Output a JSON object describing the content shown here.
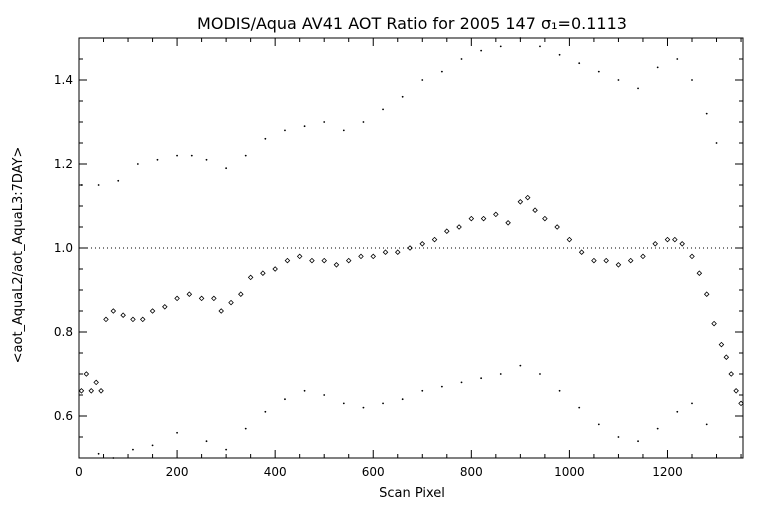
{
  "chart_data": {
    "type": "scatter",
    "title": "MODIS/Aqua AV41 AOT Ratio for 2005 147 σ₁=0.1113",
    "xlabel": "Scan Pixel",
    "ylabel": "<aot_AquaL2/aot_AquaL3:7DAY>",
    "xlim": [
      0,
      1354
    ],
    "ylim": [
      0.5,
      1.5
    ],
    "x_ticks": [
      0,
      200,
      400,
      600,
      800,
      1000,
      1200
    ],
    "y_ticks": [
      0.6,
      0.8,
      1.0,
      1.2,
      1.4
    ],
    "x_tick_labels": [
      "0",
      "200",
      "400",
      "600",
      "800",
      "1000",
      "1200"
    ],
    "y_tick_labels": [
      "0.6",
      "0.8",
      "1.0",
      "1.2",
      "1.4"
    ],
    "reference_line": 1.0,
    "grid": false,
    "series": [
      {
        "marker": "diamond",
        "x": [
          5,
          15,
          25,
          35,
          45,
          55,
          70,
          90,
          110,
          130,
          150,
          175,
          200,
          225,
          250,
          275,
          290,
          310,
          330,
          350,
          375,
          400,
          425,
          450,
          475,
          500,
          525,
          550,
          575,
          600,
          625,
          650,
          675,
          700,
          725,
          750,
          775,
          800,
          825,
          850,
          875,
          900,
          915,
          930,
          950,
          975,
          1000,
          1025,
          1050,
          1075,
          1100,
          1125,
          1150,
          1175,
          1200,
          1215,
          1230,
          1250,
          1265,
          1280,
          1295,
          1310,
          1320,
          1330,
          1340,
          1350
        ],
        "y": [
          0.66,
          0.7,
          0.66,
          0.68,
          0.66,
          0.83,
          0.85,
          0.84,
          0.83,
          0.83,
          0.85,
          0.86,
          0.88,
          0.89,
          0.88,
          0.88,
          0.85,
          0.87,
          0.89,
          0.93,
          0.94,
          0.95,
          0.97,
          0.98,
          0.97,
          0.97,
          0.96,
          0.97,
          0.98,
          0.98,
          0.99,
          0.99,
          1.0,
          1.01,
          1.02,
          1.04,
          1.05,
          1.07,
          1.07,
          1.08,
          1.06,
          1.11,
          1.12,
          1.09,
          1.07,
          1.05,
          1.02,
          0.99,
          0.97,
          0.97,
          0.96,
          0.97,
          0.98,
          1.01,
          1.02,
          1.02,
          1.01,
          0.98,
          0.94,
          0.89,
          0.82,
          0.77,
          0.74,
          0.7,
          0.66,
          0.63
        ]
      },
      {
        "marker": "dot",
        "x": [
          5,
          40,
          80,
          120,
          160,
          200,
          230,
          260,
          300,
          340,
          380,
          420,
          460,
          500,
          540,
          580,
          620,
          660,
          700,
          740,
          780,
          820,
          860,
          900,
          940,
          980,
          1020,
          1060,
          1100,
          1140,
          1180,
          1220,
          1250,
          1280,
          1300
        ],
        "y": [
          1.15,
          1.15,
          1.16,
          1.2,
          1.21,
          1.22,
          1.22,
          1.21,
          1.19,
          1.22,
          1.26,
          1.28,
          1.29,
          1.3,
          1.28,
          1.3,
          1.33,
          1.36,
          1.4,
          1.42,
          1.45,
          1.47,
          1.48,
          1.5,
          1.48,
          1.46,
          1.44,
          1.42,
          1.4,
          1.38,
          1.43,
          1.45,
          1.4,
          1.32,
          1.25
        ]
      },
      {
        "marker": "dot",
        "x": [
          40,
          70,
          110,
          150,
          200,
          260,
          300,
          340,
          380,
          420,
          460,
          500,
          540,
          580,
          620,
          660,
          700,
          740,
          780,
          820,
          860,
          900,
          940,
          980,
          1020,
          1060,
          1100,
          1140,
          1180,
          1220,
          1250,
          1280
        ],
        "y": [
          0.51,
          0.5,
          0.52,
          0.53,
          0.56,
          0.54,
          0.52,
          0.57,
          0.61,
          0.64,
          0.66,
          0.65,
          0.63,
          0.62,
          0.63,
          0.64,
          0.66,
          0.67,
          0.68,
          0.69,
          0.7,
          0.72,
          0.7,
          0.66,
          0.62,
          0.58,
          0.55,
          0.54,
          0.57,
          0.61,
          0.63,
          0.58
        ]
      }
    ]
  }
}
